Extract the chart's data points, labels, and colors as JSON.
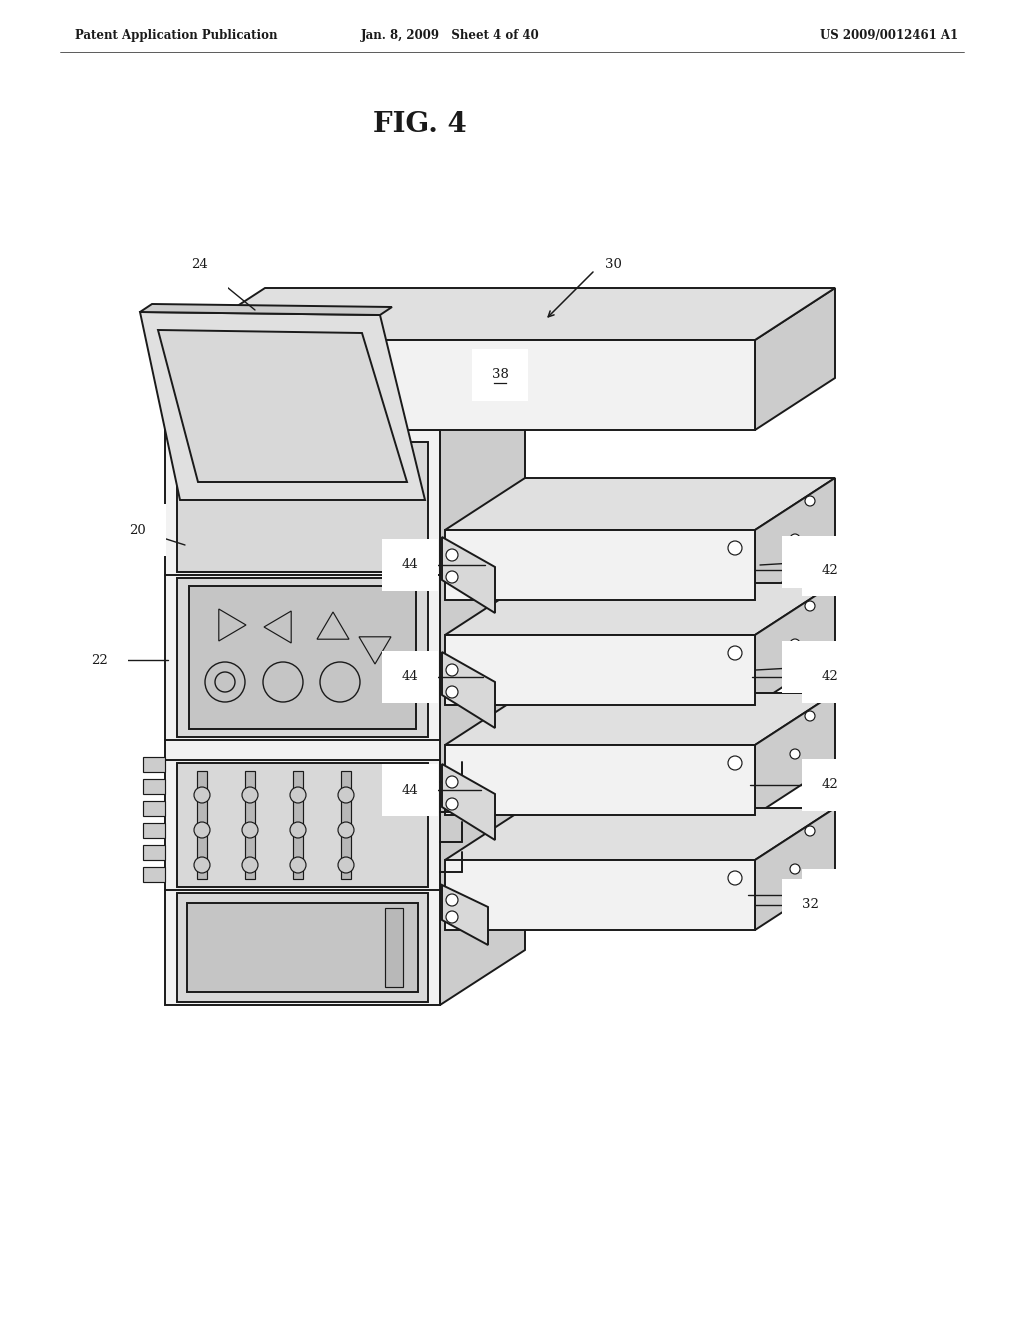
{
  "title": "FIG. 4",
  "header_left": "Patent Application Publication",
  "header_center": "Jan. 8, 2009   Sheet 4 of 40",
  "header_right": "US 2009/0012461 A1",
  "background_color": "#ffffff",
  "line_color": "#1a1a1a",
  "lw_main": 1.4,
  "lw_thin": 0.85,
  "lw_label": 1.0,
  "font_size_header": 8.5,
  "font_size_title": 20,
  "font_size_label": 9.5,
  "shade_front": "#f2f2f2",
  "shade_top": "#e0e0e0",
  "shade_side": "#cccccc",
  "shade_dark": "#b8b8b8",
  "shade_panel": "#d8d8d8",
  "shade_screen": "#c5c5c5",
  "shade_inner": "#b5b5b5"
}
